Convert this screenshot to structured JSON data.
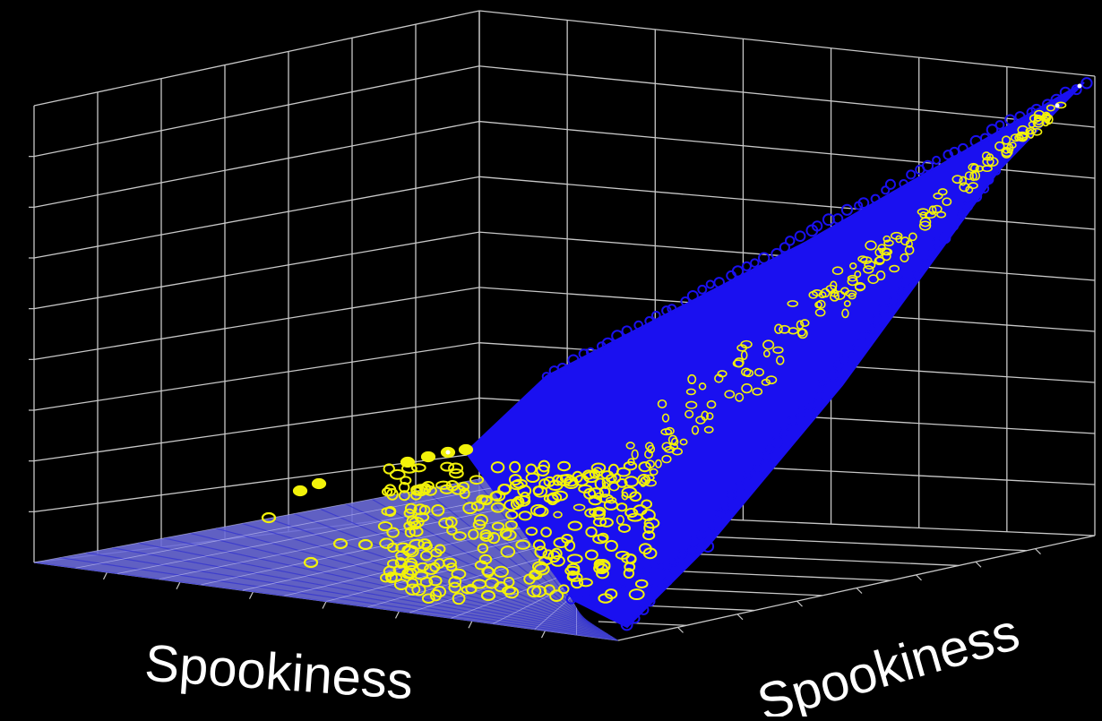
{
  "chart_data": {
    "type": "scatter",
    "dimensions": 3,
    "title": "",
    "axes": {
      "x_label": "Spookiness",
      "y_label": "Spookiness",
      "z_label": "",
      "x_range": [
        0,
        1
      ],
      "y_range": [
        0,
        1
      ],
      "z_range": [
        0,
        1
      ],
      "grid": true,
      "tick_labels_visible": false
    },
    "background_color": "#000000",
    "grid_color": "#c8c8c8",
    "series": [
      {
        "marker": "circle-open",
        "color": "#1a10f0",
        "description_points": [
          {
            "x": 0.0,
            "y": 0.0,
            "z": 0.0
          },
          {
            "x": 0.5,
            "y": 0.5,
            "z": 0.0
          },
          {
            "x": 1.0,
            "y": 1.0,
            "z": 1.0
          }
        ]
      },
      {
        "marker": "circle-open",
        "color": "#f2f20a",
        "description_points": [
          {
            "x": 0.45,
            "y": 0.15,
            "z": 0.05
          },
          {
            "x": 0.55,
            "y": 0.35,
            "z": 0.1
          },
          {
            "x": 1.0,
            "y": 1.0,
            "z": 1.0
          }
        ]
      }
    ]
  }
}
